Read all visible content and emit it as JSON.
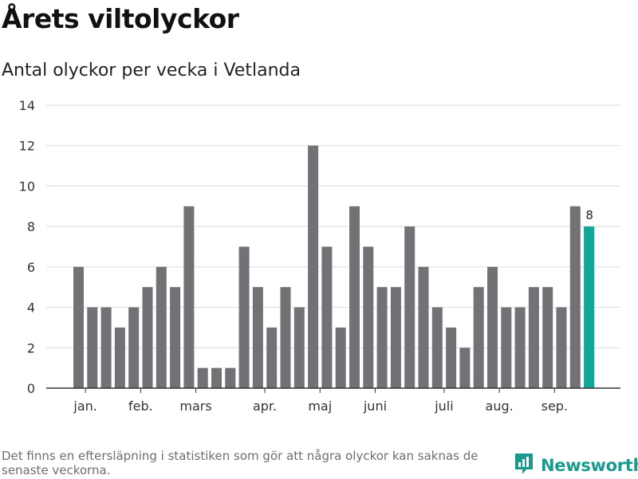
{
  "header": {
    "title": "Årets viltolyckor",
    "subtitle": "Antal olyckor per vecka i Vetlanda"
  },
  "footer": {
    "note": "Det finns en eftersläpning i statistiken som gör att några olyckor kan saknas de senaste veckorna.",
    "brand": "Newsworthy"
  },
  "colors": {
    "bar": "#727176",
    "highlight": "#13a698",
    "grid": "#dcdcdc",
    "axis": "#333333",
    "brand": "#1a9a8c"
  },
  "chart_data": {
    "type": "bar",
    "title": "Antal olyckor per vecka i Vetlanda",
    "xlabel": "",
    "ylabel": "",
    "ylim": [
      0,
      14
    ],
    "yticks": [
      0,
      2,
      4,
      6,
      8,
      10,
      12,
      14
    ],
    "grid": true,
    "values": [
      6,
      4,
      4,
      3,
      4,
      5,
      6,
      5,
      9,
      1,
      1,
      1,
      7,
      5,
      3,
      5,
      4,
      12,
      7,
      3,
      9,
      7,
      5,
      5,
      8,
      6,
      4,
      3,
      2,
      5,
      6,
      4,
      4,
      5,
      5,
      4,
      9,
      8
    ],
    "month_labels": [
      {
        "label": "jan.",
        "week_index": 0.5
      },
      {
        "label": "feb.",
        "week_index": 4.5
      },
      {
        "label": "mars",
        "week_index": 8.5
      },
      {
        "label": "apr.",
        "week_index": 13.5
      },
      {
        "label": "maj",
        "week_index": 17.5
      },
      {
        "label": "juni",
        "week_index": 21.5
      },
      {
        "label": "juli",
        "week_index": 26.5
      },
      {
        "label": "aug.",
        "week_index": 30.5
      },
      {
        "label": "sep.",
        "week_index": 34.5
      }
    ],
    "highlight_index": 37,
    "data_labels": [
      {
        "index": 37,
        "text": "8"
      }
    ]
  }
}
